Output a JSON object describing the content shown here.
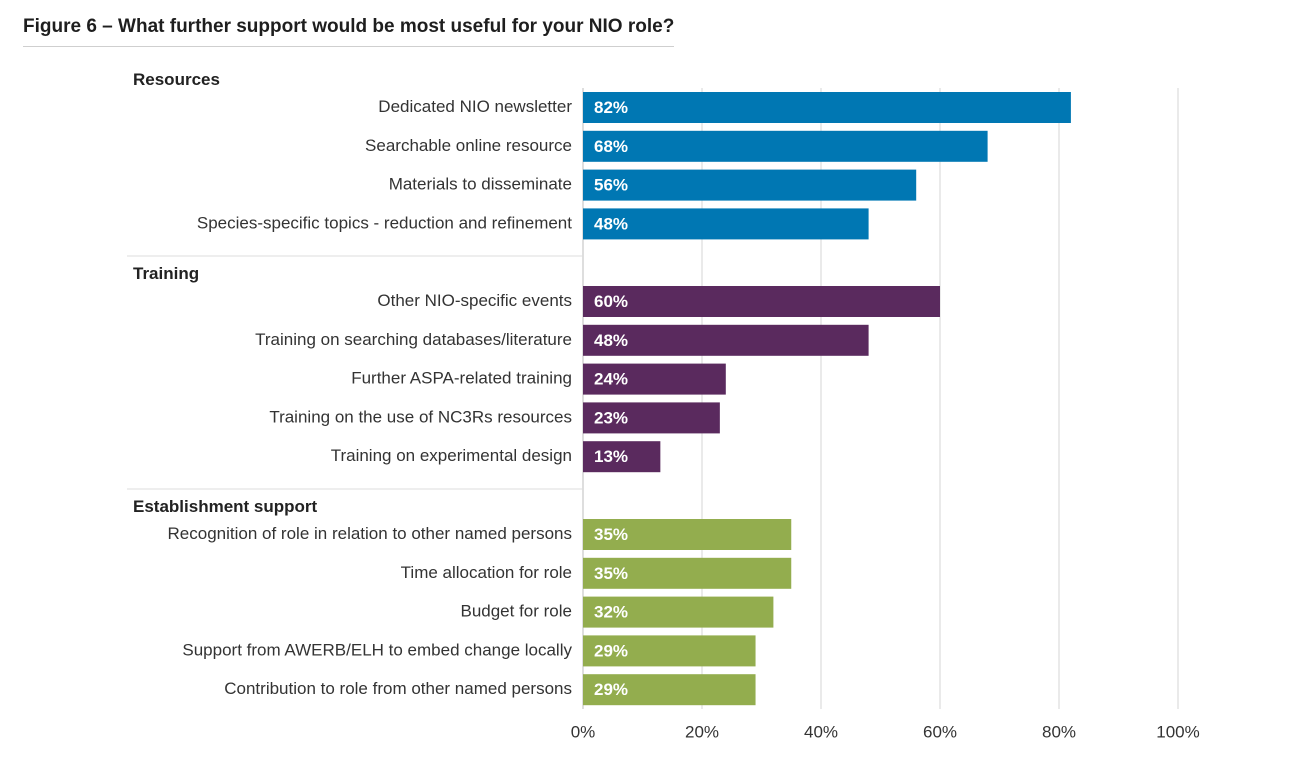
{
  "title": "Figure 6 – What further support would be most useful for your NIO role?",
  "chart_data": {
    "type": "bar",
    "orientation": "horizontal",
    "title": "Figure 6 – What further support would be most useful for your NIO role?",
    "xlabel": "",
    "ylabel": "",
    "xlim": [
      0,
      100
    ],
    "ticks": [
      0,
      20,
      40,
      60,
      80,
      100
    ],
    "tick_labels": [
      "0%",
      "20%",
      "40%",
      "60%",
      "80%",
      "100%"
    ],
    "grid": true,
    "groups": [
      {
        "name": "Resources",
        "color": "#0077b3",
        "items": [
          {
            "label": "Dedicated NIO newsletter",
            "value": 82,
            "value_label": "82%"
          },
          {
            "label": "Searchable online resource",
            "value": 68,
            "value_label": "68%"
          },
          {
            "label": "Materials to disseminate",
            "value": 56,
            "value_label": "56%"
          },
          {
            "label": "Species-specific topics - reduction and refinement",
            "value": 48,
            "value_label": "48%"
          }
        ]
      },
      {
        "name": "Training",
        "color": "#5a2a5e",
        "items": [
          {
            "label": "Other NIO-specific events",
            "value": 60,
            "value_label": "60%"
          },
          {
            "label": "Training on searching databases/literature",
            "value": 48,
            "value_label": "48%"
          },
          {
            "label": "Further ASPA-related training",
            "value": 24,
            "value_label": "24%"
          },
          {
            "label": "Training on the use of NC3Rs resources",
            "value": 23,
            "value_label": "23%"
          },
          {
            "label": "Training on experimental design",
            "value": 13,
            "value_label": "13%"
          }
        ]
      },
      {
        "name": "Establishment support",
        "color": "#93ad4e",
        "items": [
          {
            "label": "Recognition of role in relation to other named persons",
            "value": 35,
            "value_label": "35%"
          },
          {
            "label": "Time allocation for role",
            "value": 35,
            "value_label": "35%"
          },
          {
            "label": "Budget for role",
            "value": 32,
            "value_label": "32%"
          },
          {
            "label": "Support from AWERB/ELH to embed change locally",
            "value": 29,
            "value_label": "29%"
          },
          {
            "label": "Contribution to role from other named persons",
            "value": 29,
            "value_label": "29%"
          }
        ]
      }
    ]
  }
}
